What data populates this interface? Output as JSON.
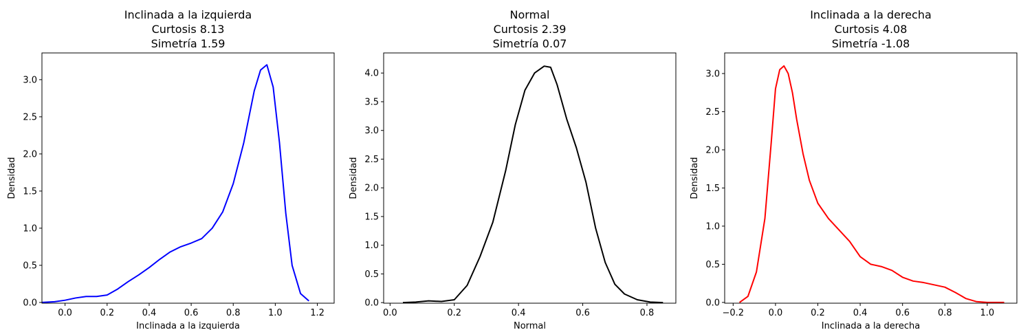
{
  "chart_data": [
    {
      "type": "line",
      "title": [
        "Inclinada a la izquierda",
        "Curtosis 8.13",
        "Simetría 1.59"
      ],
      "xlabel": "Inclinada a la izquierda",
      "ylabel": "Densidad",
      "xlim": [
        -0.11,
        1.28
      ],
      "ylim": [
        -0.01,
        3.36
      ],
      "xticks": [
        0.0,
        0.2,
        0.4,
        0.6,
        0.8,
        1.0,
        1.2
      ],
      "xtick_labels": [
        "0.0",
        "0.2",
        "0.4",
        "0.6",
        "0.8",
        "1.0",
        "1.2"
      ],
      "yticks": [
        0.0,
        0.5,
        1.0,
        1.5,
        2.0,
        2.5,
        3.0
      ],
      "ytick_labels": [
        "0.0",
        "0.5",
        "1.0",
        "1.5",
        "2.0",
        "2.5",
        "3.0"
      ],
      "color": "#0000ff",
      "grid": false,
      "series": [
        {
          "x": [
            -0.11,
            -0.05,
            0.0,
            0.05,
            0.1,
            0.15,
            0.2,
            0.25,
            0.3,
            0.35,
            0.4,
            0.45,
            0.5,
            0.55,
            0.6,
            0.65,
            0.7,
            0.75,
            0.8,
            0.85,
            0.9,
            0.93,
            0.96,
            0.99,
            1.02,
            1.05,
            1.08,
            1.12,
            1.16
          ],
          "y": [
            0.0,
            0.01,
            0.03,
            0.06,
            0.08,
            0.08,
            0.1,
            0.18,
            0.28,
            0.37,
            0.47,
            0.58,
            0.68,
            0.75,
            0.8,
            0.86,
            1.0,
            1.22,
            1.6,
            2.15,
            2.85,
            3.13,
            3.2,
            2.9,
            2.15,
            1.2,
            0.5,
            0.12,
            0.02
          ]
        }
      ]
    },
    {
      "type": "line",
      "title": [
        "Normal",
        "Curtosis 2.39",
        "Simetría 0.07"
      ],
      "xlabel": "Normal",
      "ylabel": "Densidad",
      "xlim": [
        -0.02,
        0.89
      ],
      "ylim": [
        -0.01,
        4.35
      ],
      "xticks": [
        0.0,
        0.2,
        0.4,
        0.6,
        0.8
      ],
      "xtick_labels": [
        "0.0",
        "0.2",
        "0.4",
        "0.6",
        "0.8"
      ],
      "yticks": [
        0.0,
        0.5,
        1.0,
        1.5,
        2.0,
        2.5,
        3.0,
        3.5,
        4.0
      ],
      "ytick_labels": [
        "0.0",
        "0.5",
        "1.0",
        "1.5",
        "2.0",
        "2.5",
        "3.0",
        "3.5",
        "4.0"
      ],
      "color": "#000000",
      "grid": false,
      "series": [
        {
          "x": [
            0.04,
            0.08,
            0.12,
            0.16,
            0.2,
            0.24,
            0.28,
            0.32,
            0.36,
            0.39,
            0.42,
            0.45,
            0.48,
            0.5,
            0.52,
            0.55,
            0.58,
            0.61,
            0.64,
            0.67,
            0.7,
            0.73,
            0.77,
            0.81,
            0.85
          ],
          "y": [
            0.0,
            0.01,
            0.03,
            0.02,
            0.05,
            0.3,
            0.8,
            1.4,
            2.3,
            3.1,
            3.7,
            4.0,
            4.12,
            4.1,
            3.8,
            3.2,
            2.7,
            2.1,
            1.3,
            0.7,
            0.32,
            0.15,
            0.05,
            0.01,
            0.0
          ]
        }
      ]
    },
    {
      "type": "line",
      "title": [
        "Inclinada a la derecha",
        "Curtosis 4.08",
        "Simetría -1.08"
      ],
      "xlabel": "Inclinada a la derecha",
      "ylabel": "Densidad",
      "xlim": [
        -0.24,
        1.14
      ],
      "ylim": [
        -0.01,
        3.27
      ],
      "xticks": [
        -0.2,
        0.0,
        0.2,
        0.4,
        0.6,
        0.8,
        1.0
      ],
      "xtick_labels": [
        "−0.2",
        "0.0",
        "0.2",
        "0.4",
        "0.6",
        "0.8",
        "1.0"
      ],
      "yticks": [
        0.0,
        0.5,
        1.0,
        1.5,
        2.0,
        2.5,
        3.0
      ],
      "ytick_labels": [
        "0.0",
        "0.5",
        "1.0",
        "1.5",
        "2.0",
        "2.5",
        "3.0"
      ],
      "color": "#ff0000",
      "grid": false,
      "series": [
        {
          "x": [
            -0.17,
            -0.13,
            -0.09,
            -0.05,
            -0.02,
            0.0,
            0.02,
            0.04,
            0.06,
            0.08,
            0.1,
            0.13,
            0.16,
            0.2,
            0.25,
            0.3,
            0.35,
            0.4,
            0.45,
            0.5,
            0.55,
            0.6,
            0.65,
            0.7,
            0.8,
            0.85,
            0.9,
            0.95,
            1.0,
            1.08
          ],
          "y": [
            0.0,
            0.08,
            0.4,
            1.1,
            2.1,
            2.8,
            3.05,
            3.1,
            3.0,
            2.75,
            2.4,
            1.95,
            1.6,
            1.3,
            1.1,
            0.95,
            0.8,
            0.6,
            0.5,
            0.47,
            0.42,
            0.33,
            0.28,
            0.26,
            0.2,
            0.13,
            0.05,
            0.01,
            0.0,
            0.0
          ]
        }
      ]
    }
  ]
}
